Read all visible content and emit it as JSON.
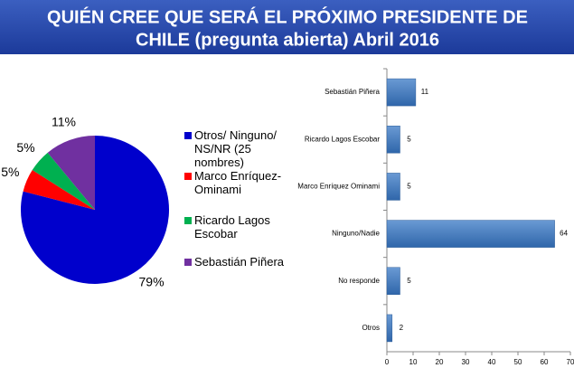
{
  "title": [
    "QUIÉN CREE QUE SERÁ EL PRÓXIMO PRESIDENTE DE",
    "CHILE (pregunta abierta)  Abril 2016"
  ],
  "chart_data": [
    {
      "type": "pie",
      "categories": [
        "Otros/ Ninguno/ NS/NR (25 nombres)",
        "Marco Enríquez-Ominami",
        "Ricardo Lagos Escobar",
        "Sebastián Piñera"
      ],
      "values": [
        79,
        5,
        5,
        11
      ],
      "value_labels": [
        "79%",
        "5%",
        "5%",
        "11%"
      ],
      "colors": [
        "#0000cc",
        "#ff0000",
        "#00b050",
        "#7030a0"
      ]
    },
    {
      "type": "barh",
      "categories": [
        "Sebastián Piñera",
        "Ricardo Lagos Escobar",
        "Marco Enríquez Ominami",
        "Ninguno/Nadie",
        "No responde",
        "Otros"
      ],
      "values": [
        11,
        5,
        5,
        64,
        5,
        2
      ],
      "color": "#4a7ebb",
      "xlim": [
        0,
        70
      ],
      "xticks": [
        0,
        10,
        20,
        30,
        40,
        50,
        60,
        70
      ]
    }
  ]
}
